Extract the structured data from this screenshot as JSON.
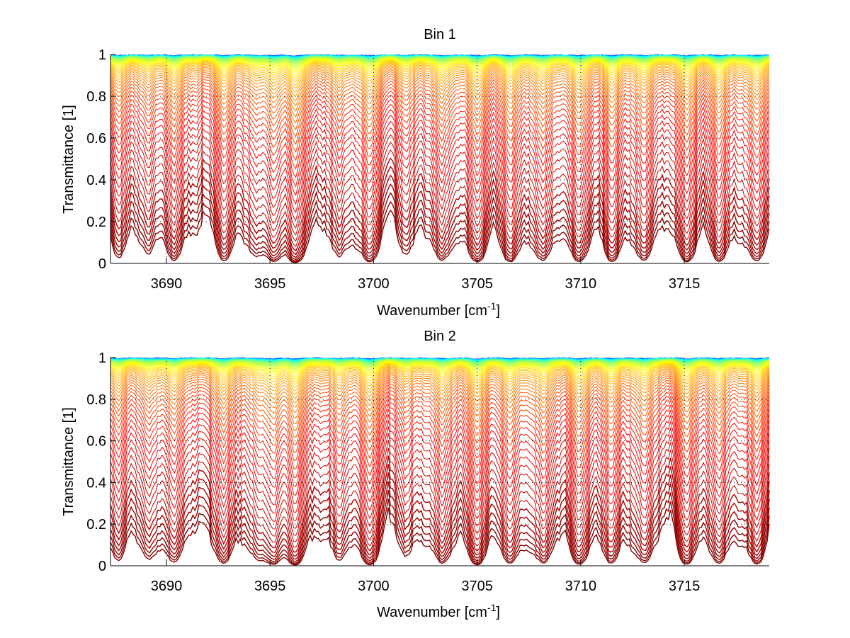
{
  "figure": {
    "background": "#ffffff"
  },
  "chart_data": [
    {
      "type": "line",
      "title": "Bin 1",
      "xlabel": "Wavenumber [cm",
      "xlabel_sup": "-1",
      "xlabel_tail": "]",
      "ylabel": "Transmittance [1]",
      "xlim": [
        3687.3,
        3719.1
      ],
      "ylim": [
        0,
        1
      ],
      "xticks": [
        3690,
        3695,
        3700,
        3705,
        3710,
        3715
      ],
      "xtick_labels": [
        "3690",
        "3695",
        "3700",
        "3705",
        "3710",
        "3715"
      ],
      "yticks": [
        0,
        0.2,
        0.4,
        0.6,
        0.8,
        1
      ],
      "ytick_labels": [
        "0",
        "0.2",
        "0.4",
        "0.6",
        "0.8",
        "1"
      ],
      "grid": "dotted",
      "colormap": "jet",
      "series_count": 60,
      "series_description": "Family of transmittance spectra from near 1 (blue/cyan) through yellow/orange to near 0 (red), with absorption dips",
      "absorption_lines": [
        {
          "x": 3687.7,
          "depth": 0.7
        },
        {
          "x": 3689.2,
          "depth": 0.45
        },
        {
          "x": 3690.4,
          "depth": 0.85
        },
        {
          "x": 3692.8,
          "depth": 0.85
        },
        {
          "x": 3694.4,
          "depth": 0.45
        },
        {
          "x": 3695.2,
          "depth": 0.75
        },
        {
          "x": 3696.2,
          "depth": 1.0
        },
        {
          "x": 3698.3,
          "depth": 0.65
        },
        {
          "x": 3699.8,
          "depth": 0.95
        },
        {
          "x": 3701.6,
          "depth": 0.45
        },
        {
          "x": 3703.3,
          "depth": 0.9
        },
        {
          "x": 3705.0,
          "depth": 0.9
        },
        {
          "x": 3706.6,
          "depth": 0.85
        },
        {
          "x": 3708.2,
          "depth": 0.85
        },
        {
          "x": 3709.9,
          "depth": 0.85
        },
        {
          "x": 3711.5,
          "depth": 0.85
        },
        {
          "x": 3713.1,
          "depth": 0.8
        },
        {
          "x": 3715.1,
          "depth": 0.85
        },
        {
          "x": 3716.7,
          "depth": 0.9
        },
        {
          "x": 3718.5,
          "depth": 0.95
        }
      ]
    },
    {
      "type": "line",
      "title": "Bin 2",
      "xlabel": "Wavenumber [cm",
      "xlabel_sup": "-1",
      "xlabel_tail": "]",
      "ylabel": "Transmittance [1]",
      "xlim": [
        3687.3,
        3719.1
      ],
      "ylim": [
        0,
        1
      ],
      "xticks": [
        3690,
        3695,
        3700,
        3705,
        3710,
        3715
      ],
      "xtick_labels": [
        "3690",
        "3695",
        "3700",
        "3705",
        "3710",
        "3715"
      ],
      "yticks": [
        0,
        0.2,
        0.4,
        0.6,
        0.8,
        1
      ],
      "ytick_labels": [
        "0",
        "0.2",
        "0.4",
        "0.6",
        "0.8",
        "1"
      ],
      "grid": "dotted",
      "colormap": "jet",
      "series_count": 60,
      "series_description": "Family of transmittance spectra from near 1 (blue/cyan) through yellow/orange to near 0 (red), with absorption dips",
      "absorption_lines": [
        {
          "x": 3687.7,
          "depth": 0.75
        },
        {
          "x": 3689.2,
          "depth": 0.55
        },
        {
          "x": 3690.4,
          "depth": 0.85
        },
        {
          "x": 3692.8,
          "depth": 0.9
        },
        {
          "x": 3694.4,
          "depth": 0.5
        },
        {
          "x": 3695.2,
          "depth": 0.8
        },
        {
          "x": 3696.2,
          "depth": 1.0
        },
        {
          "x": 3698.3,
          "depth": 0.7
        },
        {
          "x": 3699.8,
          "depth": 0.95
        },
        {
          "x": 3701.6,
          "depth": 0.5
        },
        {
          "x": 3703.3,
          "depth": 0.9
        },
        {
          "x": 3705.0,
          "depth": 0.9
        },
        {
          "x": 3706.6,
          "depth": 0.85
        },
        {
          "x": 3708.2,
          "depth": 0.85
        },
        {
          "x": 3709.9,
          "depth": 0.85
        },
        {
          "x": 3711.5,
          "depth": 0.85
        },
        {
          "x": 3713.1,
          "depth": 0.8
        },
        {
          "x": 3715.1,
          "depth": 0.85
        },
        {
          "x": 3716.7,
          "depth": 0.9
        },
        {
          "x": 3718.5,
          "depth": 0.95
        }
      ]
    }
  ]
}
